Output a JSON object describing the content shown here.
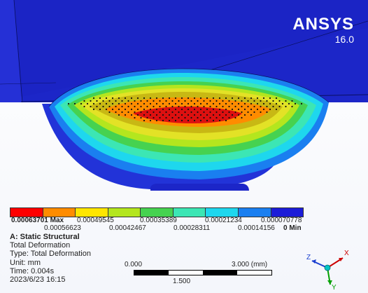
{
  "brand": {
    "name": "ANSYS",
    "version": "16.0"
  },
  "legend": {
    "colors": [
      "#ff0000",
      "#ff8c00",
      "#ffe600",
      "#b4e61e",
      "#46d250",
      "#3ce6b4",
      "#1ed7ee",
      "#1a7ff0",
      "#1c1cd8"
    ],
    "top_labels": [
      {
        "text": "0.00063701 Max",
        "bold": true
      },
      {
        "text": "0.00049545"
      },
      {
        "text": "0.00035389"
      },
      {
        "text": "0.00021234"
      },
      {
        "text": "0.000070778"
      }
    ],
    "bottom_labels": [
      {
        "text": "0.00056623"
      },
      {
        "text": "0.00042467"
      },
      {
        "text": "0.00028311"
      },
      {
        "text": "0.00014156"
      },
      {
        "text": "0 Min",
        "bold": true
      }
    ]
  },
  "info": {
    "title": "A: Static Structural",
    "result": "Total Deformation",
    "type": "Type: Total Deformation",
    "unit": "Unit: mm",
    "time": "Time: 0.004s",
    "date": "2023/6/23 16:15"
  },
  "scale": {
    "left": "0.000",
    "right": "3.000 (mm)",
    "mid": "1.500"
  },
  "triad": {
    "x": "X",
    "y": "Y",
    "z": "Z"
  }
}
